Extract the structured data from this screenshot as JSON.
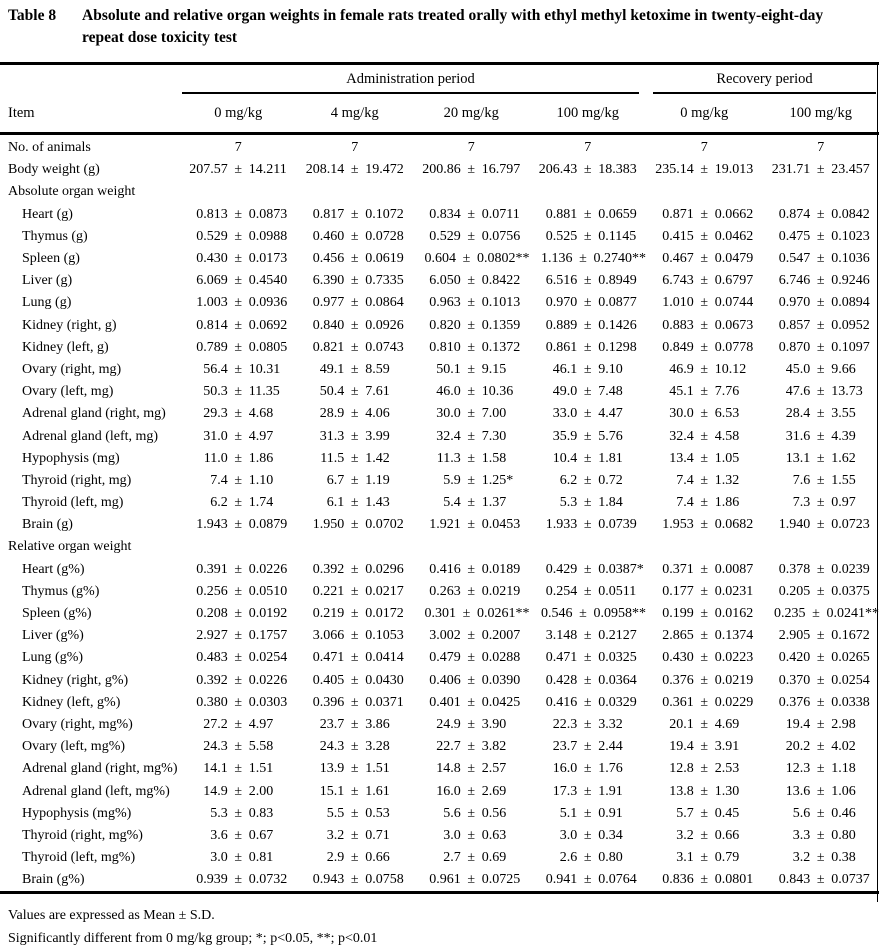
{
  "title": {
    "label": "Table 8",
    "text": "Absolute and relative organ weights in female rats treated orally with ethyl methyl ketoxime in twenty-eight-day repeat dose toxicity test"
  },
  "header": {
    "item_label": "Item",
    "groups": [
      {
        "label": "Administration period",
        "columns": [
          "0 mg/kg",
          "4 mg/kg",
          "20 mg/kg",
          "100 mg/kg"
        ]
      },
      {
        "label": "Recovery period",
        "columns": [
          "0 mg/kg",
          "100 mg/kg"
        ]
      }
    ]
  },
  "table": {
    "rows": [
      {
        "label": "No. of animals",
        "indent": 0,
        "section": false,
        "values": [
          "7",
          "7",
          "7",
          "7",
          "7",
          "7"
        ]
      },
      {
        "label": "Body weight (g)",
        "indent": 0,
        "section": false,
        "values": [
          "207.57 ± 14.211",
          "208.14 ± 19.472",
          "200.86 ± 16.797",
          "206.43 ± 18.383",
          "235.14 ± 19.013",
          "231.71 ± 23.457"
        ]
      },
      {
        "label": "Absolute organ weight",
        "indent": 0,
        "section": true,
        "values": [
          "",
          "",
          "",
          "",
          "",
          ""
        ]
      },
      {
        "label": "Heart (g)",
        "indent": 1,
        "section": false,
        "values": [
          "0.813 ± 0.0873",
          "0.817 ± 0.1072",
          "0.834 ± 0.0711",
          "0.881 ± 0.0659",
          "0.871 ± 0.0662",
          "0.874 ± 0.0842"
        ]
      },
      {
        "label": "Thymus (g)",
        "indent": 1,
        "section": false,
        "values": [
          "0.529 ± 0.0988",
          "0.460 ± 0.0728",
          "0.529 ± 0.0756",
          "0.525 ± 0.1145",
          "0.415 ± 0.0462",
          "0.475 ± 0.1023"
        ]
      },
      {
        "label": "Spleen (g)",
        "indent": 1,
        "section": false,
        "values": [
          "0.430 ± 0.0173",
          "0.456 ± 0.0619",
          "0.604 ± 0.0802**",
          "1.136 ± 0.2740**",
          "0.467 ± 0.0479",
          "0.547 ± 0.1036"
        ]
      },
      {
        "label": "Liver (g)",
        "indent": 1,
        "section": false,
        "values": [
          "6.069 ± 0.4540",
          "6.390 ± 0.7335",
          "6.050 ± 0.8422",
          "6.516 ± 0.8949",
          "6.743 ± 0.6797",
          "6.746 ± 0.9246"
        ]
      },
      {
        "label": "Lung (g)",
        "indent": 1,
        "section": false,
        "values": [
          "1.003 ± 0.0936",
          "0.977 ± 0.0864",
          "0.963 ± 0.1013",
          "0.970 ± 0.0877",
          "1.010 ± 0.0744",
          "0.970 ± 0.0894"
        ]
      },
      {
        "label": "Kidney (right, g)",
        "indent": 1,
        "section": false,
        "values": [
          "0.814 ± 0.0692",
          "0.840 ± 0.0926",
          "0.820 ± 0.1359",
          "0.889 ± 0.1426",
          "0.883 ± 0.0673",
          "0.857 ± 0.0952"
        ]
      },
      {
        "label": "Kidney (left, g)",
        "indent": 1,
        "section": false,
        "values": [
          "0.789 ± 0.0805",
          "0.821 ± 0.0743",
          "0.810 ± 0.1372",
          "0.861 ± 0.1298",
          "0.849 ± 0.0778",
          "0.870 ± 0.1097"
        ]
      },
      {
        "label": "Ovary (right, mg)",
        "indent": 1,
        "section": false,
        "values": [
          "56.4 ± 10.31",
          "49.1 ± 8.59",
          "50.1 ± 9.15",
          "46.1 ± 9.10",
          "46.9 ± 10.12",
          "45.0 ± 9.66"
        ]
      },
      {
        "label": "Ovary (left, mg)",
        "indent": 1,
        "section": false,
        "values": [
          "50.3 ± 11.35",
          "50.4 ± 7.61",
          "46.0 ± 10.36",
          "49.0 ± 7.48",
          "45.1 ± 7.76",
          "47.6 ± 13.73"
        ]
      },
      {
        "label": "Adrenal gland (right, mg)",
        "indent": 1,
        "section": false,
        "values": [
          "29.3 ± 4.68",
          "28.9 ± 4.06",
          "30.0 ± 7.00",
          "33.0 ± 4.47",
          "30.0 ± 6.53",
          "28.4 ± 3.55"
        ]
      },
      {
        "label": "Adrenal gland (left, mg)",
        "indent": 1,
        "section": false,
        "values": [
          "31.0 ± 4.97",
          "31.3 ± 3.99",
          "32.4 ± 7.30",
          "35.9 ± 5.76",
          "32.4 ± 4.58",
          "31.6 ± 4.39"
        ]
      },
      {
        "label": "Hypophysis (mg)",
        "indent": 1,
        "section": false,
        "values": [
          "11.0 ± 1.86",
          "11.5 ± 1.42",
          "11.3 ± 1.58",
          "10.4 ± 1.81",
          "13.4 ± 1.05",
          "13.1 ± 1.62"
        ]
      },
      {
        "label": "Thyroid (right, mg)",
        "indent": 1,
        "section": false,
        "values": [
          "7.4 ± 1.10",
          "6.7 ± 1.19",
          "5.9 ± 1.25*",
          "6.2 ± 0.72",
          "7.4 ± 1.32",
          "7.6 ± 1.55"
        ]
      },
      {
        "label": "Thyroid (left, mg)",
        "indent": 1,
        "section": false,
        "values": [
          "6.2 ± 1.74",
          "6.1 ± 1.43",
          "5.4 ± 1.37",
          "5.3 ± 1.84",
          "7.4 ± 1.86",
          "7.3 ± 0.97"
        ]
      },
      {
        "label": "Brain (g)",
        "indent": 1,
        "section": false,
        "values": [
          "1.943 ± 0.0879",
          "1.950 ± 0.0702",
          "1.921 ± 0.0453",
          "1.933 ± 0.0739",
          "1.953 ± 0.0682",
          "1.940 ± 0.0723"
        ]
      },
      {
        "label": "Relative organ weight",
        "indent": 0,
        "section": true,
        "values": [
          "",
          "",
          "",
          "",
          "",
          ""
        ]
      },
      {
        "label": "Heart (g%)",
        "indent": 1,
        "section": false,
        "values": [
          "0.391 ± 0.0226",
          "0.392 ± 0.0296",
          "0.416 ± 0.0189",
          "0.429 ± 0.0387*",
          "0.371 ± 0.0087",
          "0.378 ± 0.0239"
        ]
      },
      {
        "label": "Thymus (g%)",
        "indent": 1,
        "section": false,
        "values": [
          "0.256 ± 0.0510",
          "0.221 ± 0.0217",
          "0.263 ± 0.0219",
          "0.254 ± 0.0511",
          "0.177 ± 0.0231",
          "0.205 ± 0.0375"
        ]
      },
      {
        "label": "Spleen (g%)",
        "indent": 1,
        "section": false,
        "values": [
          "0.208 ± 0.0192",
          "0.219 ± 0.0172",
          "0.301 ± 0.0261**",
          "0.546 ± 0.0958**",
          "0.199 ± 0.0162",
          "0.235 ± 0.0241**"
        ]
      },
      {
        "label": "Liver (g%)",
        "indent": 1,
        "section": false,
        "values": [
          "2.927 ± 0.1757",
          "3.066 ± 0.1053",
          "3.002 ± 0.2007",
          "3.148 ± 0.2127",
          "2.865 ± 0.1374",
          "2.905 ± 0.1672"
        ]
      },
      {
        "label": "Lung (g%)",
        "indent": 1,
        "section": false,
        "values": [
          "0.483 ± 0.0254",
          "0.471 ± 0.0414",
          "0.479 ± 0.0288",
          "0.471 ± 0.0325",
          "0.430 ± 0.0223",
          "0.420 ± 0.0265"
        ]
      },
      {
        "label": "Kidney (right, g%)",
        "indent": 1,
        "section": false,
        "values": [
          "0.392 ± 0.0226",
          "0.405 ± 0.0430",
          "0.406 ± 0.0390",
          "0.428 ± 0.0364",
          "0.376 ± 0.0219",
          "0.370 ± 0.0254"
        ]
      },
      {
        "label": "Kidney (left, g%)",
        "indent": 1,
        "section": false,
        "values": [
          "0.380 ± 0.0303",
          "0.396 ± 0.0371",
          "0.401 ± 0.0425",
          "0.416 ± 0.0329",
          "0.361 ± 0.0229",
          "0.376 ± 0.0338"
        ]
      },
      {
        "label": "Ovary (right, mg%)",
        "indent": 1,
        "section": false,
        "values": [
          "27.2 ± 4.97",
          "23.7 ± 3.86",
          "24.9 ± 3.90",
          "22.3 ± 3.32",
          "20.1 ± 4.69",
          "19.4 ± 2.98"
        ]
      },
      {
        "label": "Ovary (left, mg%)",
        "indent": 1,
        "section": false,
        "values": [
          "24.3 ± 5.58",
          "24.3 ± 3.28",
          "22.7 ± 3.82",
          "23.7 ± 2.44",
          "19.4 ± 3.91",
          "20.2 ± 4.02"
        ]
      },
      {
        "label": "Adrenal gland (right, mg%)",
        "indent": 1,
        "section": false,
        "values": [
          "14.1 ± 1.51",
          "13.9 ± 1.51",
          "14.8 ± 2.57",
          "16.0 ± 1.76",
          "12.8 ± 2.53",
          "12.3 ± 1.18"
        ]
      },
      {
        "label": "Adrenal gland (left, mg%)",
        "indent": 1,
        "section": false,
        "values": [
          "14.9 ± 2.00",
          "15.1 ± 1.61",
          "16.0 ± 2.69",
          "17.3 ± 1.91",
          "13.8 ± 1.30",
          "13.6 ± 1.06"
        ]
      },
      {
        "label": "Hypophysis (mg%)",
        "indent": 1,
        "section": false,
        "values": [
          "5.3 ± 0.83",
          "5.5 ± 0.53",
          "5.6 ± 0.56",
          "5.1 ± 0.91",
          "5.7 ± 0.45",
          "5.6 ± 0.46"
        ]
      },
      {
        "label": "Thyroid (right, mg%)",
        "indent": 1,
        "section": false,
        "values": [
          "3.6 ± 0.67",
          "3.2 ± 0.71",
          "3.0 ± 0.63",
          "3.0 ± 0.34",
          "3.2 ± 0.66",
          "3.3 ± 0.80"
        ]
      },
      {
        "label": "Thyroid (left, mg%)",
        "indent": 1,
        "section": false,
        "values": [
          "3.0 ± 0.81",
          "2.9 ± 0.66",
          "2.7 ± 0.69",
          "2.6 ± 0.80",
          "3.1 ± 0.79",
          "3.2 ± 0.38"
        ]
      },
      {
        "label": "Brain (g%)",
        "indent": 1,
        "section": false,
        "values": [
          "0.939 ± 0.0732",
          "0.943 ± 0.0758",
          "0.961 ± 0.0725",
          "0.941 ± 0.0764",
          "0.836 ± 0.0801",
          "0.843 ± 0.0737"
        ]
      }
    ]
  },
  "footnotes": [
    "Values are expressed as Mean ± S.D.",
    "Significantly different from 0 mg/kg group;  *; p<0.05, **; p<0.01"
  ]
}
